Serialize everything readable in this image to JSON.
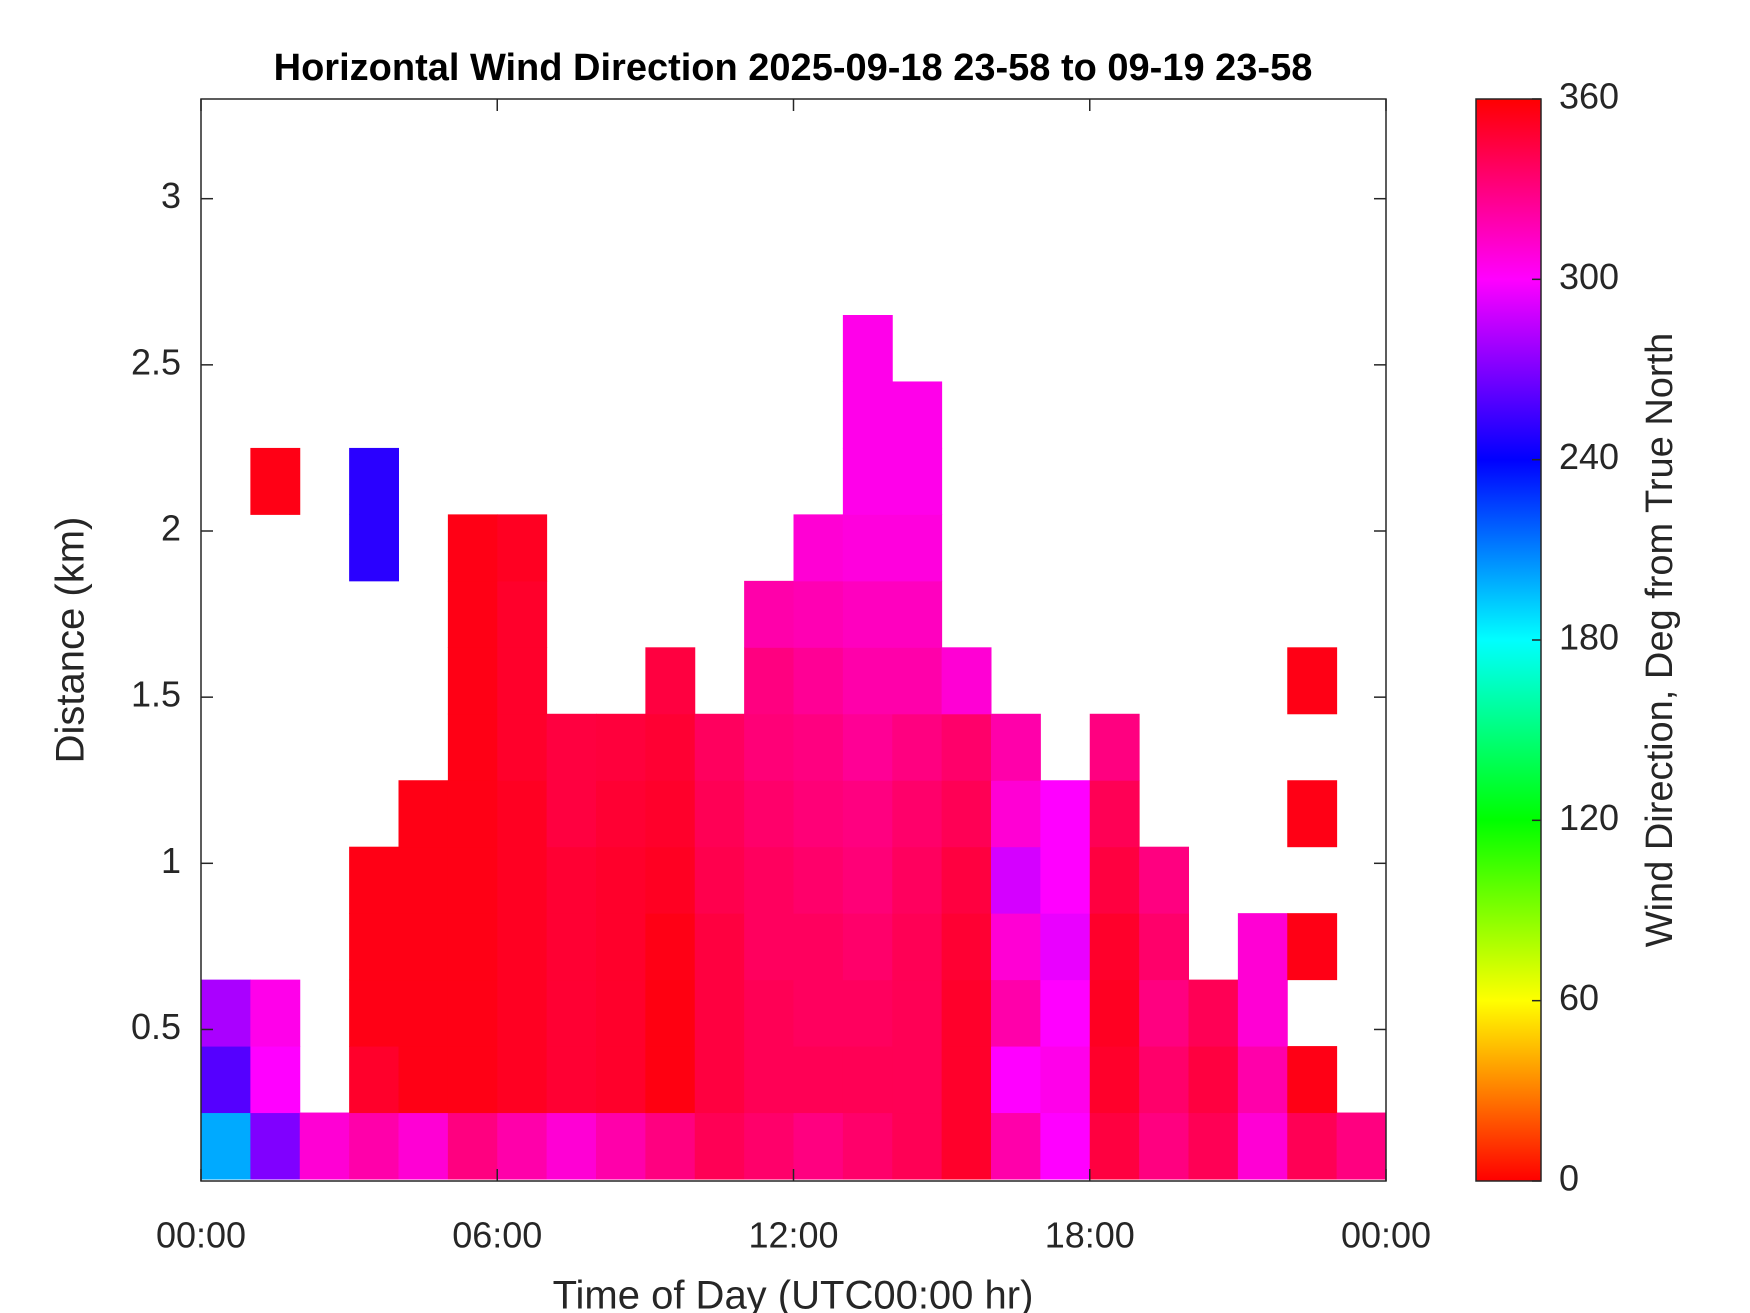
{
  "chart_data": {
    "type": "heatmap",
    "title": "Horizontal Wind Direction 2025-09-18 23-58 to 09-19 23-58",
    "x_label": "Time of Day (UTC00:00 hr)",
    "y_label": "Distance (km)",
    "colorbar_label": "Wind Direction, Deg from True North",
    "xlim": [
      0,
      24
    ],
    "xticks": [
      {
        "value": 0,
        "label": "00:00"
      },
      {
        "value": 6,
        "label": "06:00"
      },
      {
        "value": 12,
        "label": "12:00"
      },
      {
        "value": 18,
        "label": "18:00"
      },
      {
        "value": 24,
        "label": "00:00"
      }
    ],
    "ylim": [
      0.044,
      3.3
    ],
    "yticks": [
      0.5,
      1,
      1.5,
      2,
      2.5,
      3
    ],
    "clim": [
      0,
      360
    ],
    "cticks": [
      0,
      60,
      120,
      180,
      240,
      300,
      360
    ],
    "colormap": [
      "#ff0000",
      "#ffff00",
      "#00ff00",
      "#00ffff",
      "#0000ff",
      "#ff00ff",
      "#ff0000"
    ],
    "x_edges": [
      0,
      1,
      2,
      3,
      4,
      5,
      6,
      7,
      8,
      9,
      10,
      11,
      12,
      13,
      14,
      15,
      16,
      17,
      18,
      19,
      20,
      21,
      22,
      23,
      24
    ],
    "y_edges": [
      0.05,
      0.25,
      0.45,
      0.65,
      0.85,
      1.05,
      1.25,
      1.45,
      1.65,
      1.85,
      2.05,
      2.25,
      2.45,
      2.65
    ],
    "z": [
      [
        200,
        270,
        310,
        320,
        310,
        330,
        320,
        310,
        320,
        330,
        340,
        335,
        330,
        335,
        340,
        350,
        320,
        300,
        345,
        330,
        340,
        310,
        340,
        330
      ],
      [
        260,
        300,
        null,
        350,
        355,
        355,
        352,
        348,
        350,
        356,
        345,
        340,
        340,
        340,
        340,
        350,
        300,
        305,
        350,
        335,
        345,
        320,
        355,
        null
      ],
      [
        280,
        305,
        null,
        355,
        355,
        355,
        352,
        348,
        350,
        356,
        345,
        340,
        338,
        338,
        340,
        350,
        320,
        300,
        352,
        330,
        340,
        310,
        null,
        null
      ],
      [
        null,
        null,
        null,
        355,
        355,
        355,
        352,
        348,
        350,
        355,
        345,
        338,
        338,
        335,
        340,
        348,
        310,
        295,
        350,
        335,
        null,
        310,
        355,
        null
      ],
      [
        null,
        null,
        null,
        355,
        355,
        355,
        352,
        348,
        350,
        352,
        342,
        338,
        335,
        332,
        338,
        345,
        290,
        300,
        345,
        330,
        null,
        null,
        null,
        null
      ],
      [
        null,
        null,
        null,
        null,
        355,
        355,
        352,
        345,
        348,
        350,
        340,
        335,
        332,
        330,
        335,
        340,
        310,
        300,
        340,
        null,
        null,
        null,
        355,
        null
      ],
      [
        null,
        null,
        null,
        null,
        null,
        355,
        350,
        345,
        346,
        348,
        338,
        332,
        330,
        325,
        330,
        335,
        320,
        null,
        330,
        null,
        null,
        null,
        null,
        null
      ],
      [
        null,
        null,
        null,
        null,
        null,
        355,
        350,
        null,
        null,
        345,
        null,
        330,
        325,
        320,
        320,
        310,
        null,
        null,
        null,
        null,
        null,
        null,
        355,
        null
      ],
      [
        null,
        null,
        null,
        null,
        null,
        355,
        350,
        null,
        null,
        null,
        null,
        320,
        318,
        315,
        315,
        null,
        null,
        null,
        null,
        null,
        null,
        null,
        null,
        null
      ],
      [
        null,
        null,
        null,
        250,
        null,
        355,
        352,
        null,
        null,
        null,
        null,
        null,
        310,
        308,
        308,
        null,
        null,
        null,
        null,
        null,
        null,
        null,
        null,
        null
      ],
      [
        null,
        355,
        null,
        250,
        null,
        null,
        null,
        null,
        null,
        null,
        null,
        null,
        null,
        305,
        305,
        null,
        null,
        null,
        null,
        null,
        null,
        null,
        null,
        null
      ],
      [
        null,
        null,
        null,
        null,
        null,
        null,
        null,
        null,
        null,
        null,
        null,
        null,
        null,
        305,
        305,
        null,
        null,
        null,
        null,
        null,
        null,
        null,
        null,
        null
      ],
      [
        null,
        null,
        null,
        null,
        null,
        null,
        null,
        null,
        null,
        null,
        null,
        null,
        null,
        305,
        null,
        null,
        null,
        null,
        null,
        null,
        null,
        null,
        null,
        null
      ]
    ]
  }
}
